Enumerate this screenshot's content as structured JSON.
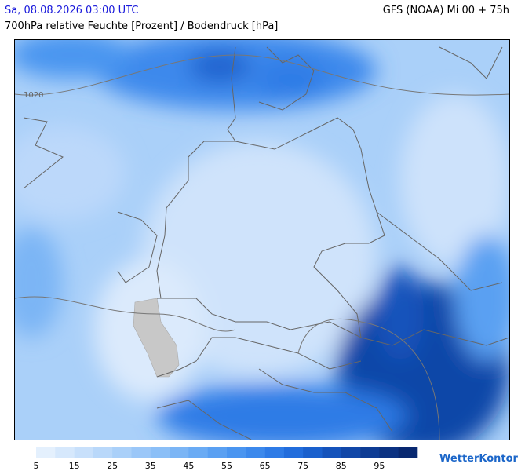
{
  "header": {
    "date": "Sa, 08.08.2026 03:00 UTC",
    "model": "GFS (NOAA) Mi 00 + 75h",
    "parameter": "700hPa relative Feuchte [Prozent] / Bodendruck [hPa]"
  },
  "map": {
    "isobar_label": "1020"
  },
  "legend": {
    "ticks": [
      5,
      15,
      25,
      35,
      45,
      55,
      65,
      75,
      85,
      95
    ],
    "colors": [
      "#e4f0fd",
      "#d6e8fc",
      "#c8e0fb",
      "#b9d8fa",
      "#aad0f9",
      "#9bc7f8",
      "#8bbff7",
      "#7bb5f5",
      "#6aabf4",
      "#5aa0f2",
      "#4a95f0",
      "#3c89ec",
      "#2e7be6",
      "#226ddc",
      "#1a60cd",
      "#1553bb",
      "#1147a8",
      "#0e3c94",
      "#0b3282",
      "#082870"
    ]
  },
  "brand": "WetterKontor"
}
